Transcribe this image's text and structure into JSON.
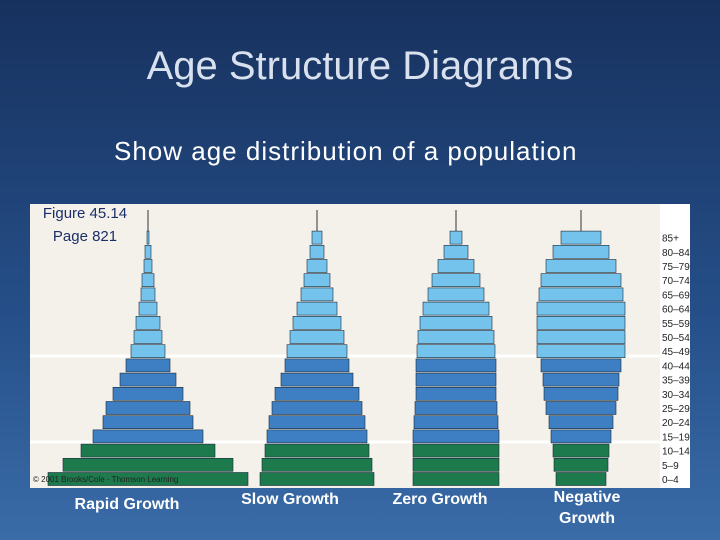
{
  "title": "Age Structure Diagrams",
  "subtitle": "Show age distribution of a population",
  "figure": {
    "caption": [
      "Figure 45.14",
      "Page 821"
    ],
    "credit": "© 2001 Brooks/Cole - Thomson Learning",
    "age_groups": [
      "0–4",
      "5–9",
      "10–14",
      "15–19",
      "20–24",
      "25–29",
      "30–34",
      "35–39",
      "40–44",
      "45–49",
      "50–54",
      "55–59",
      "60–64",
      "65–69",
      "70–74",
      "75–79",
      "80–84",
      "85+"
    ],
    "age_colors": [
      "#1d7a4c",
      "#1d7a4c",
      "#1d7a4c",
      "#3d7fc2",
      "#3d7fc2",
      "#3d7fc2",
      "#3d7fc2",
      "#3d7fc2",
      "#3d7fc2",
      "#74c3ec",
      "#74c3ec",
      "#74c3ec",
      "#74c3ec",
      "#74c3ec",
      "#74c3ec",
      "#74c3ec",
      "#74c3ec",
      "#74c3ec"
    ],
    "pyramids": [
      {
        "name": "Rapid Growth",
        "values": [
          100,
          85,
          67,
          55,
          45,
          42,
          35,
          28,
          22,
          17,
          14,
          12,
          9,
          7,
          6,
          4,
          3,
          1
        ]
      },
      {
        "name": "Slow Growth",
        "values": [
          57,
          55,
          52,
          50,
          48,
          45,
          42,
          36,
          32,
          30,
          27,
          24,
          20,
          16,
          13,
          10,
          7,
          5
        ]
      },
      {
        "name": "Zero Growth",
        "values": [
          43,
          43,
          43,
          43,
          42,
          41,
          40,
          40,
          40,
          39,
          38,
          36,
          33,
          28,
          24,
          18,
          12,
          6
        ]
      },
      {
        "name": "Negative Growth",
        "values": [
          25,
          27,
          28,
          30,
          32,
          35,
          37,
          38,
          40,
          44,
          44,
          44,
          44,
          42,
          40,
          35,
          28,
          20
        ]
      }
    ]
  }
}
